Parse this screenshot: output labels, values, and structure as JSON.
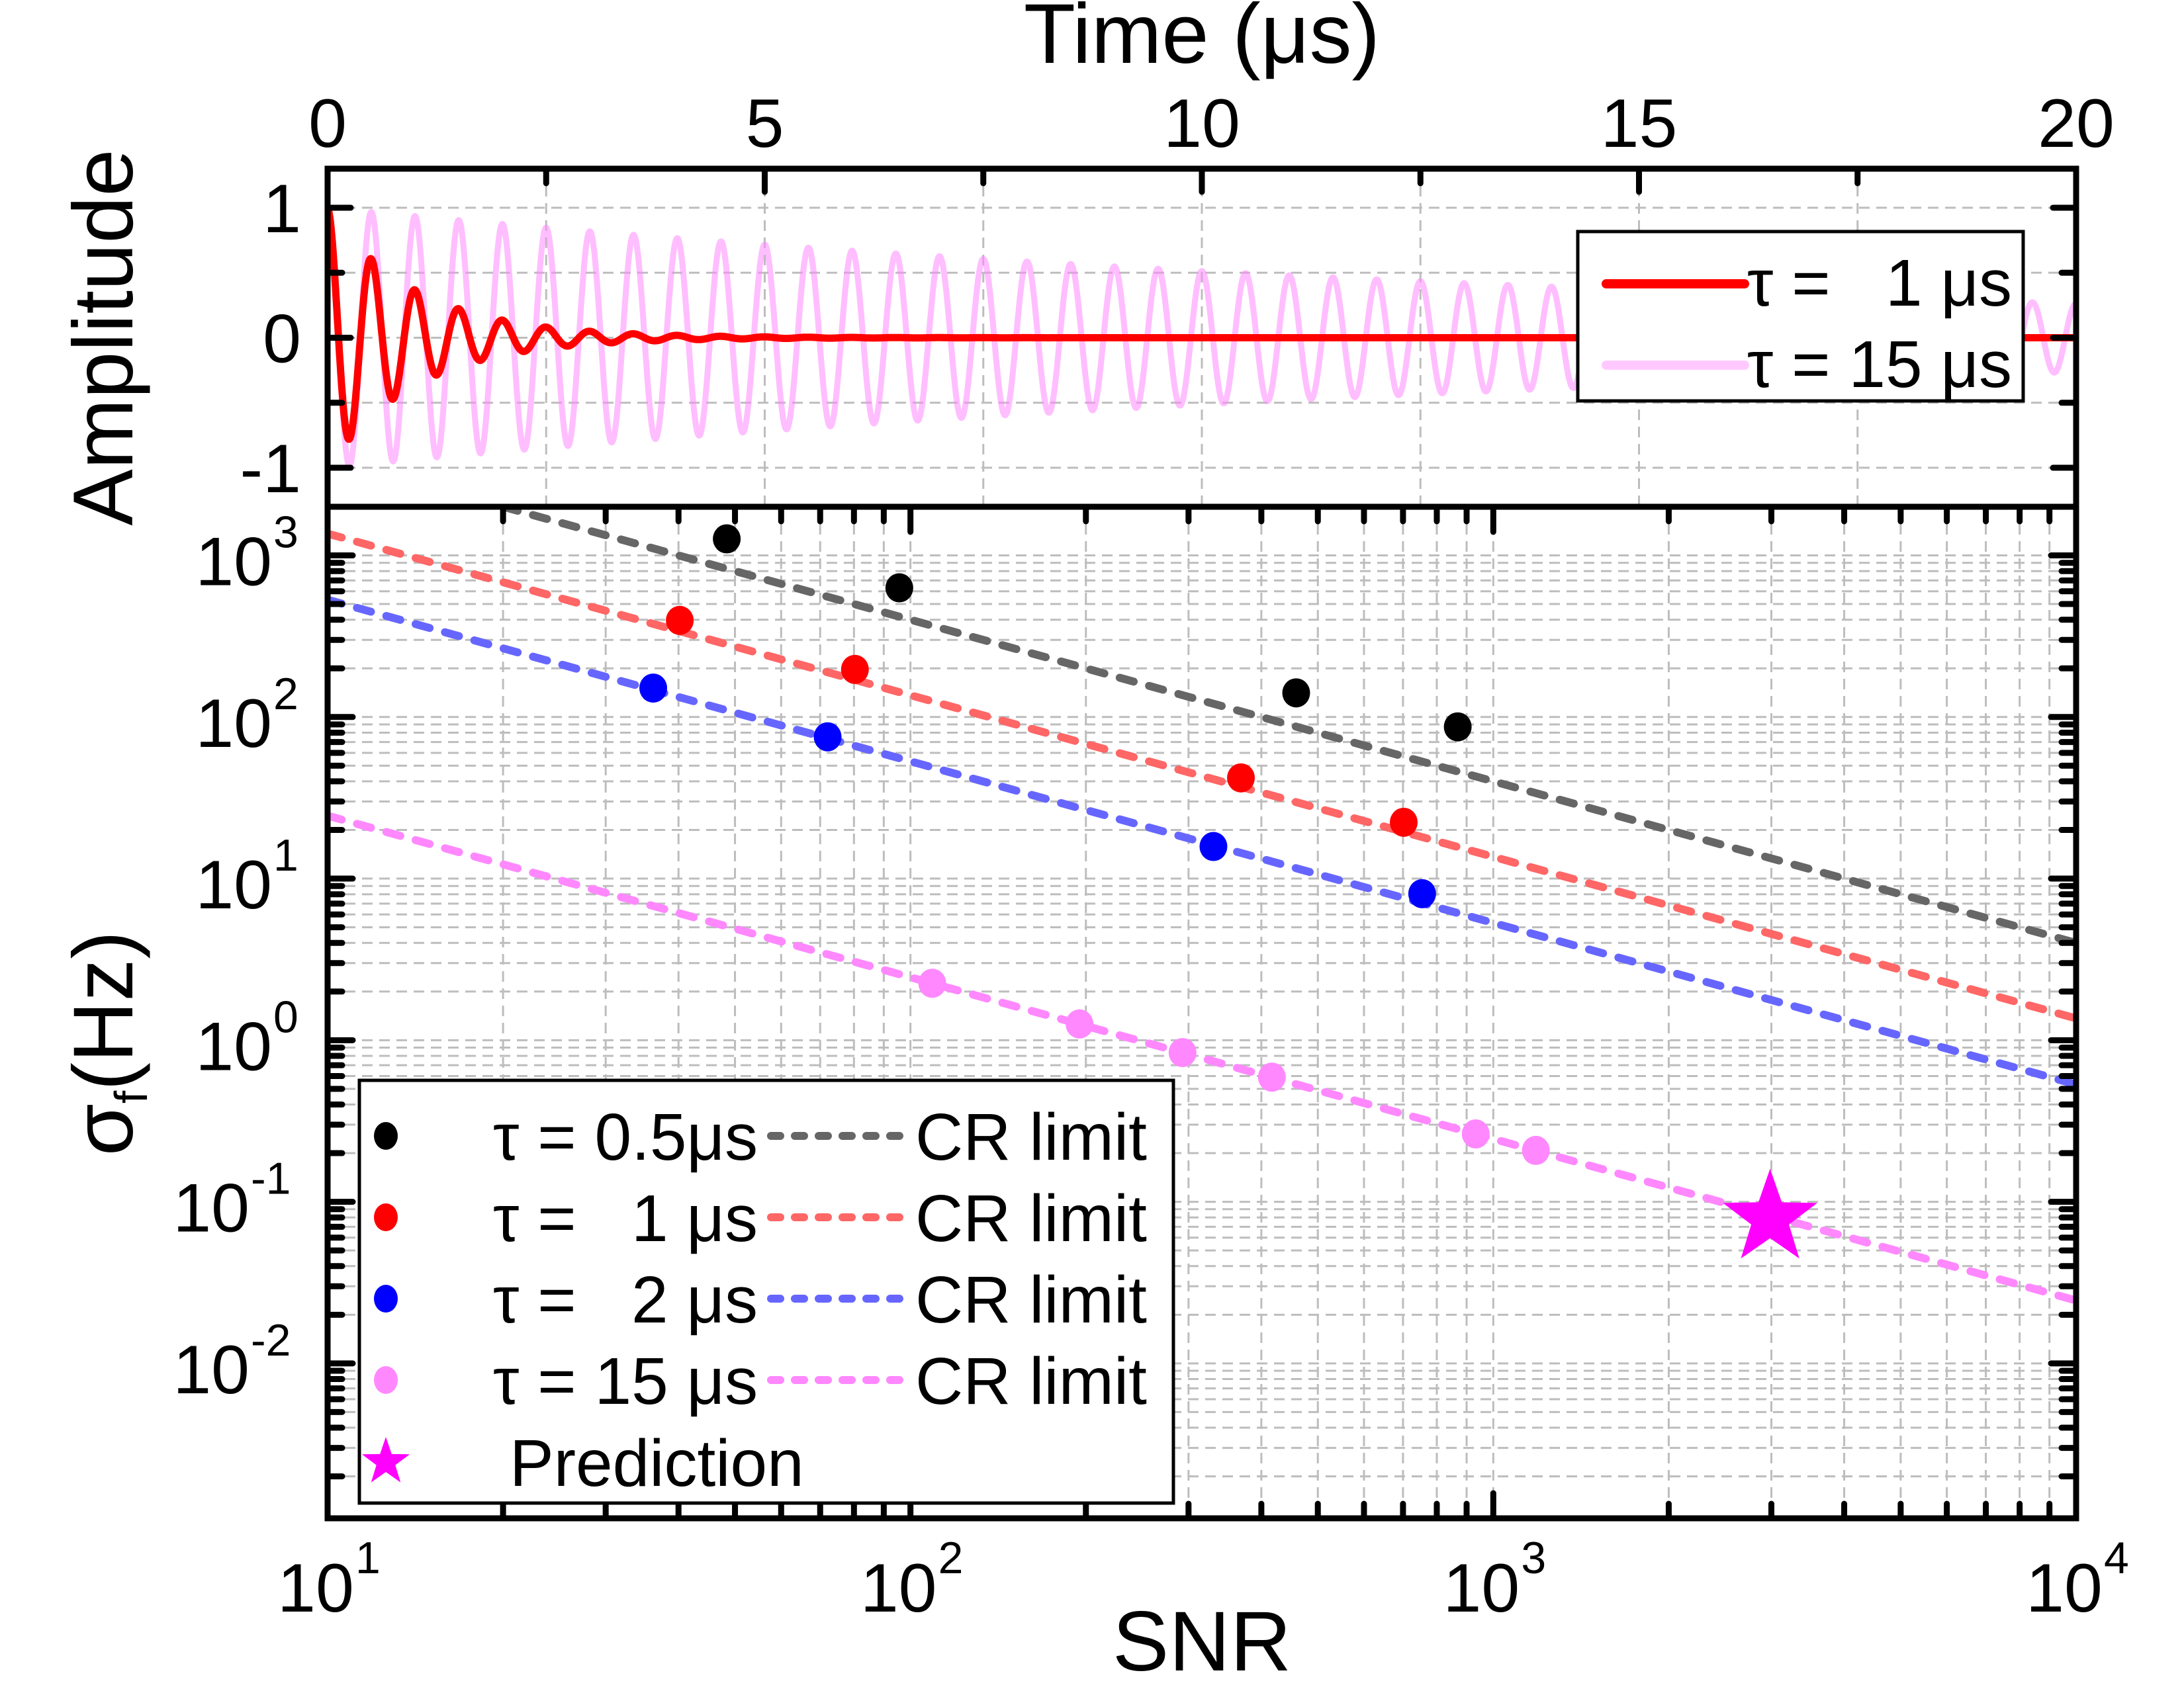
{
  "chart_data": [
    {
      "panel": "top",
      "type": "line",
      "title": "",
      "xlabel": "Time (μs)",
      "ylabel": "Amplitude",
      "xlim": [
        0,
        20
      ],
      "ylim": [
        -1.3,
        1.3
      ],
      "x_ticks": [
        "0",
        "5",
        "10",
        "15",
        "20"
      ],
      "x_tick_values": [
        0,
        5,
        10,
        15,
        20
      ],
      "y_ticks": [
        "1",
        "0",
        "-1"
      ],
      "y_tick_values": [
        1,
        0,
        -1
      ],
      "x_axis_position": "top",
      "grid": true,
      "legend_position": "top-right",
      "signal_frequency_mhz": 2,
      "series": [
        {
          "name": "τ =   1 μs",
          "tau_us": 1,
          "color": "#ff0000",
          "function": "exp(-t/tau)*cos(2*pi*f*t)"
        },
        {
          "name": "τ = 15 μs",
          "tau_us": 15,
          "color": "#ff88ff",
          "function": "exp(-t/tau)*cos(2*pi*f*t)"
        }
      ]
    },
    {
      "panel": "bottom",
      "type": "scatter",
      "title": "",
      "xlabel": "SNR",
      "ylabel": "σf(Hz)",
      "ylabel_main": "σ",
      "ylabel_sub": "f",
      "ylabel_rest": "(Hz)",
      "xscale": "log",
      "yscale": "log",
      "xlim": [
        10,
        10000
      ],
      "ylim": [
        0.0011,
        2000
      ],
      "x_ticks": [
        {
          "base": "10",
          "exp": "1",
          "value": 10
        },
        {
          "base": "10",
          "exp": "2",
          "value": 100
        },
        {
          "base": "10",
          "exp": "3",
          "value": 1000
        },
        {
          "base": "10",
          "exp": "4",
          "value": 10000
        }
      ],
      "y_ticks": [
        {
          "base": "10",
          "exp": "3",
          "value": 1000
        },
        {
          "base": "10",
          "exp": "2",
          "value": 100
        },
        {
          "base": "10",
          "exp": "1",
          "value": 10
        },
        {
          "base": "10",
          "exp": "0",
          "value": 1
        },
        {
          "base": "10",
          "exp": "-1",
          "value": 0.1
        },
        {
          "base": "10",
          "exp": "-2",
          "value": 0.01
        }
      ],
      "grid": true,
      "legend_position": "bottom-left",
      "series": [
        {
          "name": "τ = 0.5μs",
          "color": "#000000",
          "marker": "circle",
          "points": [
            [
              48.4,
              1266
            ],
            [
              95.7,
              630
            ],
            [
              459,
              141
            ],
            [
              869,
              86.9
            ]
          ],
          "cr_limit": {
            "label": "CR limit",
            "color": "#666666",
            "value_at_snr_10": 4000,
            "slope": -1
          }
        },
        {
          "name": "τ =   1 μs",
          "color": "#ff0000",
          "marker": "circle",
          "points": [
            [
              40.2,
              396
            ],
            [
              80.3,
              197
            ],
            [
              369,
              42
            ],
            [
              702,
              22.3
            ]
          ],
          "cr_limit": {
            "label": "CR limit",
            "color": "#ff6666",
            "value_at_snr_10": 1364,
            "slope": -1
          }
        },
        {
          "name": "τ =   2 μs",
          "color": "#0000ff",
          "marker": "circle",
          "points": [
            [
              36.2,
              151
            ],
            [
              72.1,
              75.4
            ],
            [
              331,
              15.8
            ],
            [
              755,
              8.06
            ]
          ],
          "cr_limit": {
            "label": "CR limit",
            "color": "#6666ff",
            "value_at_snr_10": 532,
            "slope": -1
          }
        },
        {
          "name": "τ = 15 μs",
          "color": "#ff88ff",
          "marker": "circle",
          "points": [
            [
              109,
              2.25
            ],
            [
              195,
              1.26
            ],
            [
              293,
              0.838
            ],
            [
              417,
              0.591
            ],
            [
              933,
              0.263
            ],
            [
              1183,
              0.208
            ]
          ],
          "cr_limit": {
            "label": "CR limit",
            "color": "#ff88ff",
            "value_at_snr_10": 24.5,
            "slope": -1
          }
        },
        {
          "name": "Prediction",
          "color": "#ff00ff",
          "marker": "star",
          "points": [
            [
              2985,
              0.079
            ]
          ]
        }
      ]
    }
  ]
}
